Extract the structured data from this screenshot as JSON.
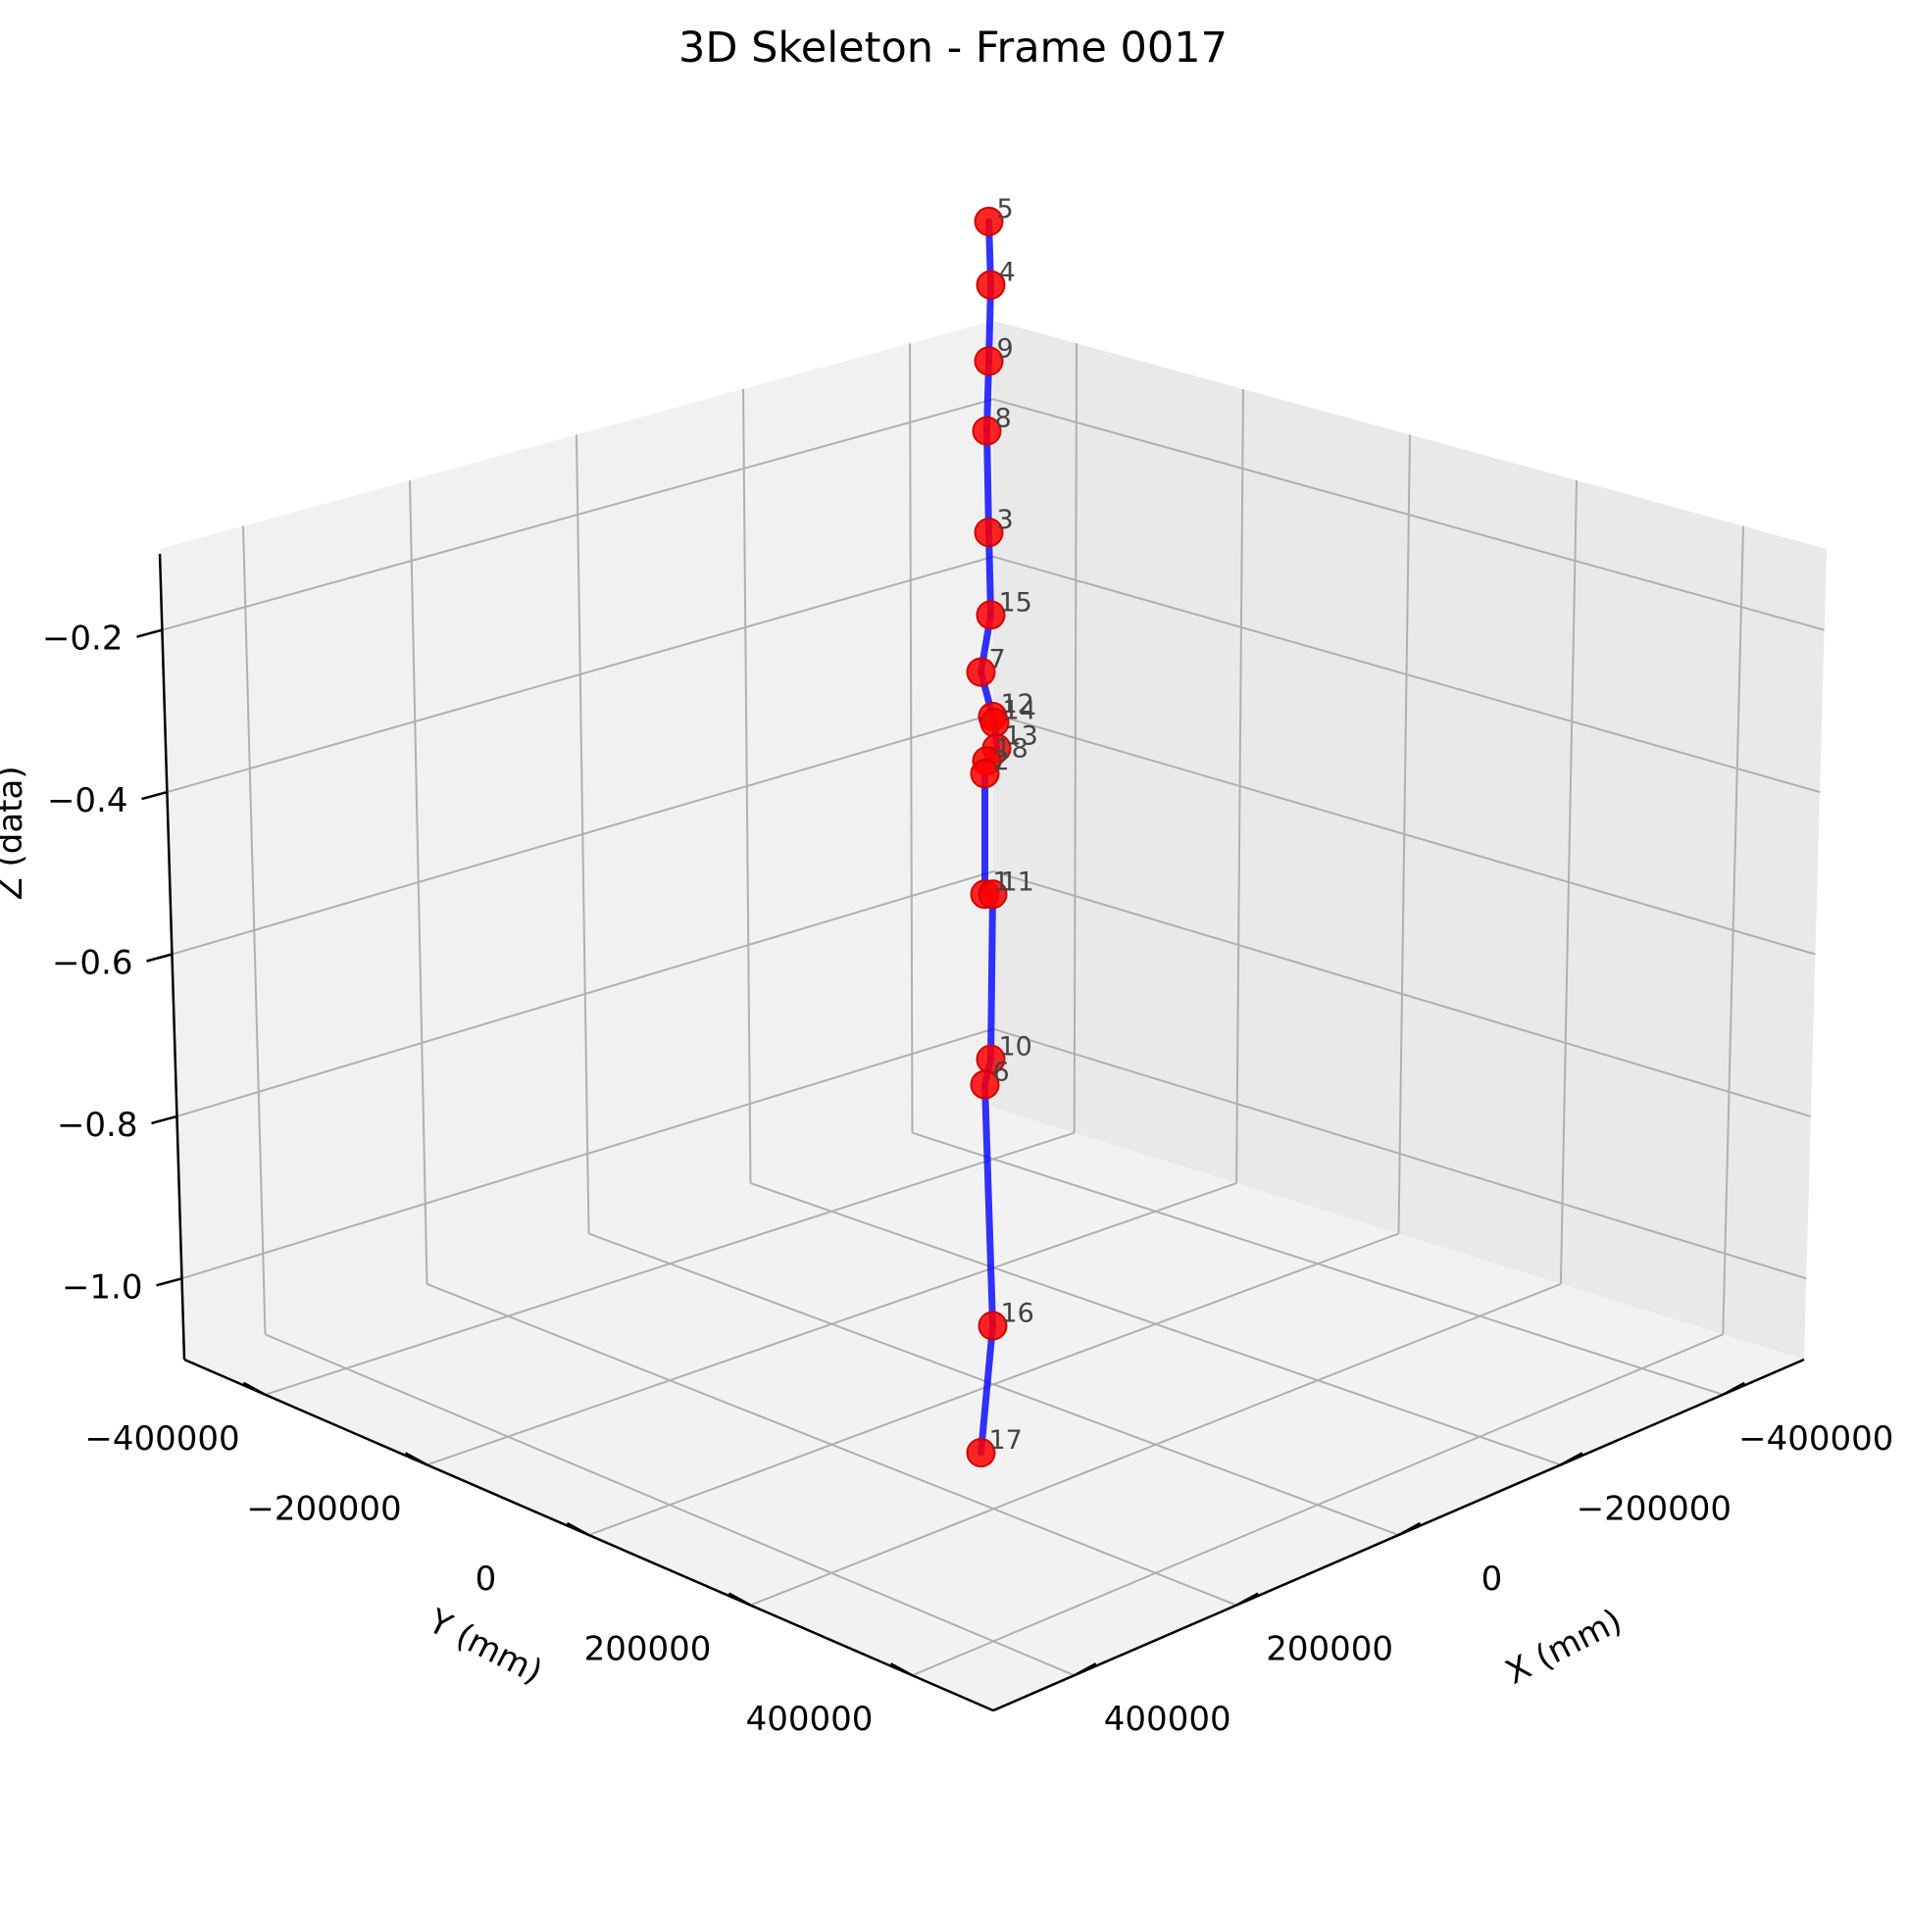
{
  "chart_data": {
    "type": "scatter",
    "projection": "3d",
    "title": "3D Skeleton - Frame 0017",
    "xlabel": "X (mm)",
    "ylabel": "Y (mm)",
    "zlabel": "Z (data)",
    "xlim": [
      -500000,
      500000
    ],
    "ylim": [
      -500000,
      500000
    ],
    "zlim": [
      -1.1,
      -0.1
    ],
    "x_ticks": [
      {
        "value": -400000,
        "label": "−400000"
      },
      {
        "value": -200000,
        "label": "−200000"
      },
      {
        "value": 0,
        "label": "0"
      },
      {
        "value": 200000,
        "label": "200000"
      },
      {
        "value": 400000,
        "label": "400000"
      }
    ],
    "y_ticks": [
      {
        "value": -400000,
        "label": "−400000"
      },
      {
        "value": -200000,
        "label": "−200000"
      },
      {
        "value": 0,
        "label": "0"
      },
      {
        "value": 200000,
        "label": "200000"
      },
      {
        "value": 400000,
        "label": "400000"
      }
    ],
    "z_ticks": [
      {
        "value": -0.2,
        "label": "−0.2"
      },
      {
        "value": -0.4,
        "label": "−0.4"
      },
      {
        "value": -0.6,
        "label": "−0.6"
      },
      {
        "value": -0.8,
        "label": "−0.8"
      },
      {
        "value": -1.0,
        "label": "−1.0"
      }
    ],
    "grid": true,
    "point_color": "#ff0000",
    "bone_color": "#0000ff",
    "joints": [
      {
        "id": "5",
        "z": -0.12
      },
      {
        "id": "4",
        "z": -0.17
      },
      {
        "id": "9",
        "z": -0.23
      },
      {
        "id": "8",
        "z": -0.285
      },
      {
        "id": "3",
        "z": -0.365
      },
      {
        "id": "15",
        "z": -0.43
      },
      {
        "id": "7",
        "z": -0.475
      },
      {
        "id": "12",
        "z": -0.51
      },
      {
        "id": "14",
        "z": -0.515
      },
      {
        "id": "13",
        "z": -0.535
      },
      {
        "id": "18",
        "z": -0.545
      },
      {
        "id": "2",
        "z": -0.555
      },
      {
        "id": "1",
        "z": -0.65
      },
      {
        "id": "11",
        "z": -0.65
      },
      {
        "id": "10",
        "z": -0.78
      },
      {
        "id": "6",
        "z": -0.8
      },
      {
        "id": "16",
        "z": -0.99
      },
      {
        "id": "17",
        "z": -1.09
      }
    ],
    "bones": [
      [
        "5",
        "4"
      ],
      [
        "4",
        "9"
      ],
      [
        "9",
        "8"
      ],
      [
        "8",
        "3"
      ],
      [
        "3",
        "15"
      ],
      [
        "15",
        "7"
      ],
      [
        "7",
        "12"
      ],
      [
        "12",
        "14"
      ],
      [
        "14",
        "13"
      ],
      [
        "13",
        "18"
      ],
      [
        "18",
        "2"
      ],
      [
        "2",
        "1"
      ],
      [
        "1",
        "11"
      ],
      [
        "11",
        "10"
      ],
      [
        "10",
        "6"
      ],
      [
        "6",
        "16"
      ],
      [
        "16",
        "17"
      ]
    ]
  }
}
